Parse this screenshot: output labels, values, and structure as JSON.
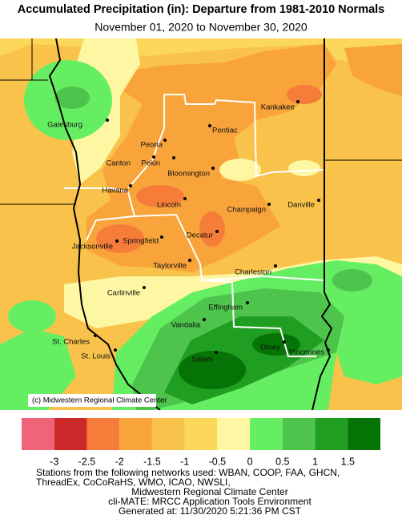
{
  "header": {
    "title": "Accumulated Precipitation (in): Departure from 1981-2010 Normals",
    "subtitle": "November 01, 2020 to November 30, 2020"
  },
  "map": {
    "cities": [
      "Kankakee",
      "Galesburg",
      "Pontiac",
      "Peoria",
      "Canton",
      "Pekin",
      "Bloomington",
      "Havana",
      "Lincoln",
      "Champaign",
      "Danville",
      "Decatur",
      "Springfield",
      "Jacksonville",
      "Taylorville",
      "Charleston",
      "Carlinville",
      "Effingham",
      "Vandalia",
      "St. Charles",
      "St. Louis",
      "Salem",
      "Olney",
      "Vincennes"
    ],
    "copyright": "(c) Midwestern Regional Climate Center"
  },
  "legend": {
    "colors": [
      "#f0647a",
      "#cc2a2a",
      "#f67c3a",
      "#f8a43a",
      "#f9c24a",
      "#fbd85a",
      "#fdf7a4",
      "#66ee62",
      "#4ec44c",
      "#1f9e22",
      "#057305"
    ],
    "ticks": [
      -3,
      -2.5,
      -2,
      -1.5,
      -1,
      -0.5,
      0,
      0.5,
      1,
      1.5
    ]
  },
  "footer": {
    "lines": [
      "Stations from the following networks used: WBAN, COOP, FAA, GHCN,",
      "ThreadEx, CoCoRaHS, WMO, ICAO, NWSLI,",
      "Midwestern Regional Climate Center",
      "cli-MATE: MRCC Application Tools Environment",
      "Generated at: 11/30/2020 5:21:36 PM CST"
    ]
  }
}
